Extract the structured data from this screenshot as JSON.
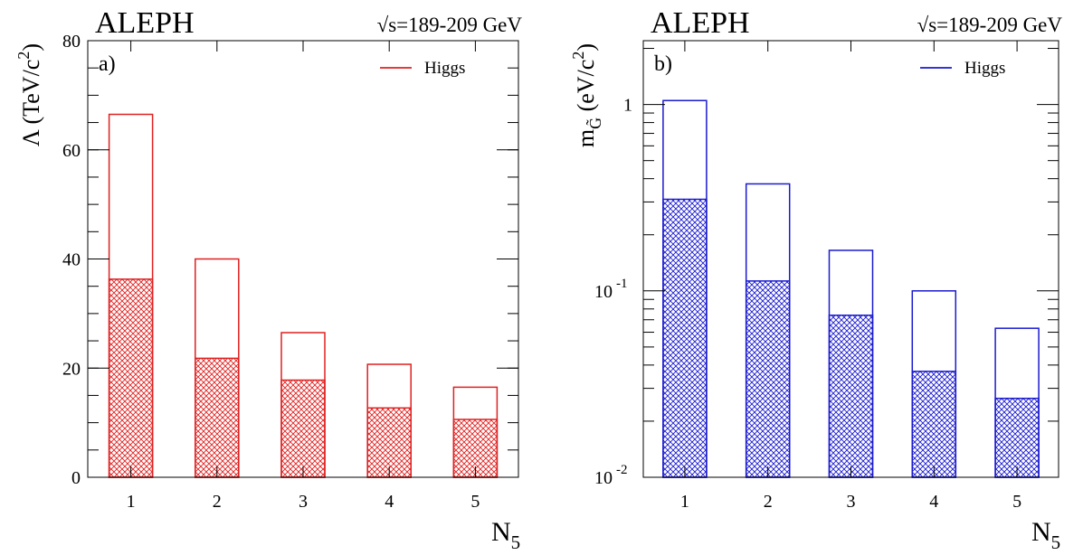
{
  "chart_data": [
    {
      "type": "bar",
      "panel_label": "a)",
      "experiment": "ALEPH",
      "energy_label": "√s=189-209 GeV",
      "ylabel": {
        "main": "Λ (TeV/c",
        "sup": "2",
        "close": ")"
      },
      "xlabel": {
        "main": "N",
        "sub": "5"
      },
      "legend": {
        "label": "Higgs",
        "position": "top-right"
      },
      "color": "#e02020",
      "y_scale": "linear",
      "ylim": [
        0,
        80
      ],
      "y_ticks": [
        0,
        20,
        40,
        60,
        80
      ],
      "y_tick_labels": [
        "0",
        "20",
        "40",
        "60",
        "80"
      ],
      "categories": [
        "1",
        "2",
        "3",
        "4",
        "5"
      ],
      "series": [
        {
          "name": "Higgs",
          "style": "open",
          "values": [
            66.5,
            40.0,
            26.5,
            20.7,
            16.5
          ]
        },
        {
          "style": "hatched",
          "values": [
            36.3,
            21.8,
            17.8,
            12.7,
            10.6
          ]
        }
      ]
    },
    {
      "type": "bar",
      "panel_label": "b)",
      "experiment": "ALEPH",
      "energy_label": "√s=189-209 GeV",
      "ylabel": {
        "main": "m",
        "sub": "G̃",
        "mid": " (eV/c",
        "sup": "2",
        "close": ")"
      },
      "xlabel": {
        "main": "N",
        "sub": "5"
      },
      "legend": {
        "label": "Higgs",
        "position": "top-right"
      },
      "color": "#1a1ad0",
      "y_scale": "log",
      "ylim": [
        0.01,
        2.2
      ],
      "y_ticks": [
        0.01,
        0.1,
        1
      ],
      "y_tick_labels": [
        {
          "base": "10",
          "exp": "-2"
        },
        {
          "base": "10",
          "exp": "-1"
        },
        {
          "base": "1",
          "exp": ""
        }
      ],
      "categories": [
        "1",
        "2",
        "3",
        "4",
        "5"
      ],
      "series": [
        {
          "name": "Higgs",
          "style": "open",
          "values": [
            1.05,
            0.375,
            0.165,
            0.1,
            0.063
          ]
        },
        {
          "style": "hatched",
          "values": [
            0.31,
            0.113,
            0.074,
            0.037,
            0.0265
          ]
        }
      ]
    }
  ]
}
